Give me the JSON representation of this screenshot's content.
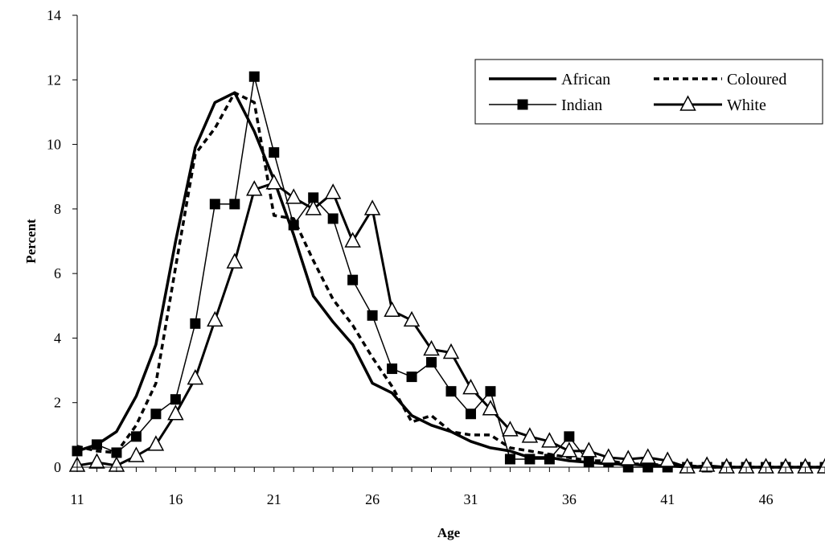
{
  "chart_data": {
    "type": "line",
    "title": "",
    "xlabel": "Age",
    "ylabel": "Percent",
    "xlim": [
      11,
      49
    ],
    "ylim": [
      0,
      14
    ],
    "x_ticks": [
      11,
      16,
      21,
      26,
      31,
      36,
      41,
      46
    ],
    "y_ticks": [
      0,
      2,
      4,
      6,
      8,
      10,
      12,
      14
    ],
    "grid": false,
    "legend_position": "top-right",
    "x": [
      11,
      12,
      13,
      14,
      15,
      16,
      17,
      18,
      19,
      20,
      21,
      22,
      23,
      24,
      25,
      26,
      27,
      28,
      29,
      30,
      31,
      32,
      33,
      34,
      35,
      36,
      37,
      38,
      39,
      40,
      41,
      42,
      43,
      44,
      45,
      46,
      47,
      48,
      49
    ],
    "series": [
      {
        "name": "African",
        "style": "solid-thick",
        "color": "#000000",
        "values": [
          0.5,
          0.7,
          1.1,
          2.2,
          3.8,
          7.0,
          9.9,
          11.3,
          11.6,
          10.4,
          8.9,
          7.2,
          5.3,
          4.5,
          3.8,
          2.6,
          2.3,
          1.6,
          1.3,
          1.1,
          0.8,
          0.6,
          0.5,
          0.3,
          0.3,
          0.2,
          0.15,
          0.1,
          0.1,
          0.05,
          0.05,
          0.0,
          0.0,
          0.0,
          0.0,
          0.0,
          0.0,
          0.0,
          0.0
        ]
      },
      {
        "name": "Coloured",
        "style": "dashed",
        "color": "#000000",
        "values": [
          0.65,
          0.5,
          0.45,
          1.3,
          2.6,
          6.2,
          9.7,
          10.5,
          11.6,
          11.3,
          7.8,
          7.7,
          6.4,
          5.2,
          4.4,
          3.4,
          2.5,
          1.4,
          1.6,
          1.1,
          1.0,
          1.0,
          0.6,
          0.5,
          0.4,
          0.3,
          0.2,
          0.2,
          0.1,
          0.1,
          0.05,
          0.05,
          0.0,
          0.0,
          0.0,
          0.0,
          0.0,
          0.0,
          0.0
        ]
      },
      {
        "name": "Indian",
        "style": "thin-square-markers",
        "color": "#000000",
        "values": [
          0.5,
          0.7,
          0.45,
          0.95,
          1.65,
          2.1,
          4.45,
          8.15,
          8.15,
          12.1,
          9.75,
          7.5,
          8.35,
          7.7,
          5.8,
          4.7,
          3.05,
          2.8,
          3.25,
          2.35,
          1.65,
          2.35,
          0.25,
          0.25,
          0.25,
          0.95,
          0.15,
          0.15,
          0.0,
          0.0,
          0.0,
          0.0,
          0.0,
          0.0,
          0.0,
          0.0,
          0.0,
          0.0,
          0.0
        ]
      },
      {
        "name": "White",
        "style": "thick-triangle-markers",
        "color": "#000000",
        "values": [
          0.05,
          0.15,
          0.05,
          0.35,
          0.7,
          1.65,
          2.75,
          4.55,
          6.35,
          8.6,
          8.8,
          8.35,
          8.0,
          8.5,
          7.0,
          8.0,
          4.85,
          4.55,
          3.65,
          3.55,
          2.45,
          1.8,
          1.15,
          0.95,
          0.8,
          0.5,
          0.5,
          0.3,
          0.25,
          0.3,
          0.2,
          0.0,
          0.05,
          0.0,
          0.0,
          0.0,
          0.0,
          0.0,
          0.0
        ]
      }
    ]
  }
}
